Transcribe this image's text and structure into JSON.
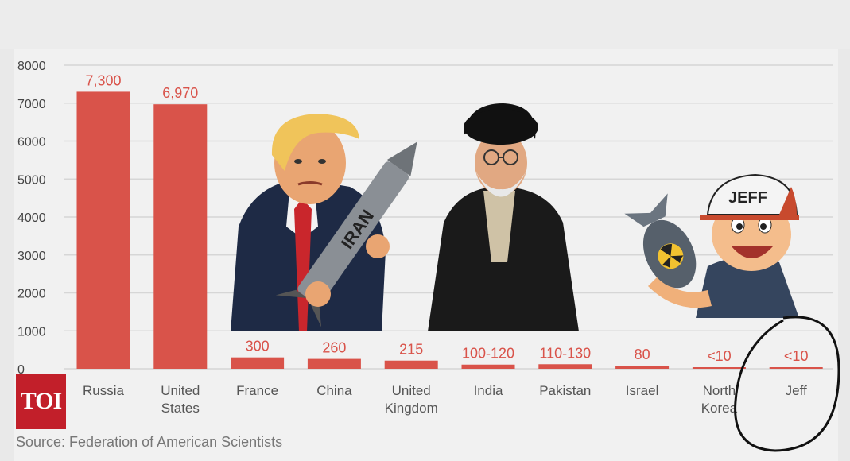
{
  "chart_data": {
    "type": "bar",
    "categories": [
      "Russia",
      "United States",
      "France",
      "China",
      "United Kingdom",
      "India",
      "Pakistan",
      "Israel",
      "North Korea",
      "Jeff"
    ],
    "category_lines": [
      [
        "Russia"
      ],
      [
        "United",
        "States"
      ],
      [
        "France"
      ],
      [
        "China"
      ],
      [
        "United",
        "Kingdom"
      ],
      [
        "India"
      ],
      [
        "Pakistan"
      ],
      [
        "Israel"
      ],
      [
        "North",
        "Korea"
      ],
      [
        "Jeff"
      ]
    ],
    "values": [
      7300,
      6970,
      300,
      260,
      215,
      110,
      120,
      80,
      10,
      10
    ],
    "value_labels": [
      "7,300",
      "6,970",
      "300",
      "260",
      "215",
      "100-120",
      "110-130",
      "80",
      "<10",
      "<10"
    ],
    "yticks": [
      0,
      1000,
      2000,
      3000,
      4000,
      5000,
      6000,
      7000,
      8000
    ],
    "ylim": [
      0,
      8000
    ],
    "grid": true,
    "bar_color": "#d9534a",
    "label_color": "#d9534a"
  },
  "source": "Source: Federation of American Scientists",
  "logo": "TOI",
  "illustration_texts": {
    "missile": "IRAN",
    "cap": "JEFF"
  },
  "colors": {
    "bar": "#d9534a",
    "grid": "#d6d6d6",
    "tick_text": "#444444",
    "logo_bg": "#c21f2a"
  }
}
